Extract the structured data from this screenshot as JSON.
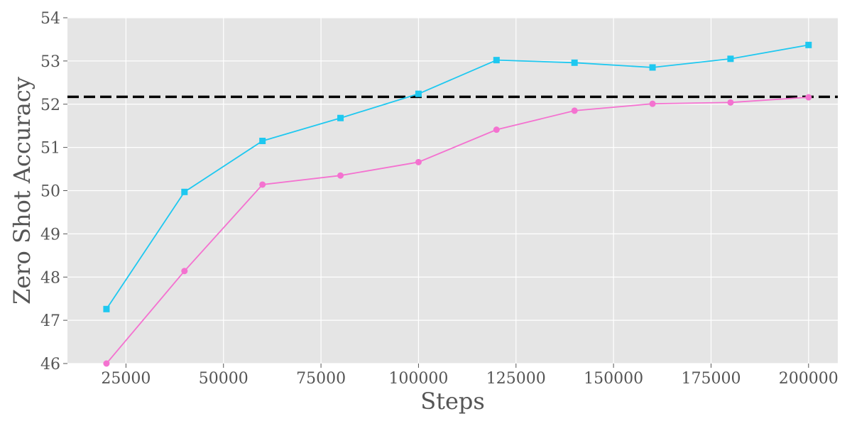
{
  "chart_data": {
    "type": "line",
    "title": "",
    "xlabel": "Steps",
    "ylabel": "Zero Shot Accuracy",
    "xlim": [
      10000,
      207500
    ],
    "ylim": [
      46,
      54
    ],
    "x_ticks": [
      25000,
      50000,
      75000,
      100000,
      125000,
      150000,
      175000,
      200000
    ],
    "x_tick_labels": [
      "25000",
      "50000",
      "75000",
      "100000",
      "125000",
      "150000",
      "175000",
      "200000"
    ],
    "y_ticks": [
      46,
      47,
      48,
      49,
      50,
      51,
      52,
      53,
      54
    ],
    "y_tick_labels": [
      "46",
      "47",
      "48",
      "49",
      "50",
      "51",
      "52",
      "53",
      "54"
    ],
    "grid": true,
    "x": [
      20000,
      40000,
      60000,
      80000,
      100000,
      120000,
      140000,
      160000,
      180000,
      200000
    ],
    "series": [
      {
        "color": "#1ec8f0",
        "marker": "square",
        "values": [
          47.26,
          49.97,
          51.15,
          51.68,
          52.24,
          53.02,
          52.96,
          52.85,
          53.05,
          53.37
        ]
      },
      {
        "color": "#f472d0",
        "marker": "circle",
        "values": [
          46.0,
          48.14,
          50.14,
          50.35,
          50.66,
          51.41,
          51.85,
          52.01,
          52.04,
          52.16
        ]
      }
    ],
    "reference_line": {
      "y": 52.17,
      "style": "dashed",
      "color": "#000000"
    },
    "colors": {
      "background": "#e5e5e5",
      "grid": "#ffffff",
      "text": "#555555"
    }
  }
}
